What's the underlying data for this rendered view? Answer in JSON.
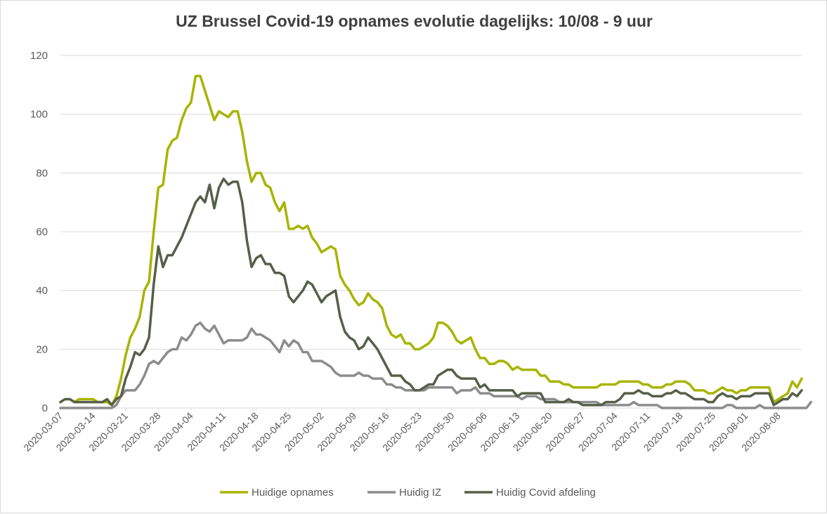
{
  "chart_data": {
    "type": "line",
    "title": "UZ Brussel Covid-19 opnames evolutie dagelijks: 10/08 - 9 uur",
    "xlabel": "",
    "ylabel": "",
    "start_date": "2020-03-07",
    "ylim": [
      0,
      120
    ],
    "yticks": [
      "0",
      "20",
      "40",
      "60",
      "80",
      "100",
      "120"
    ],
    "x_tick_labels": [
      "2020-03-07",
      "2020-03-14",
      "2020-03-21",
      "2020-03-28",
      "2020-04-04",
      "2020-04-11",
      "2020-04-18",
      "2020-04-25",
      "2020-05-02",
      "2020-05-09",
      "2020-05-16",
      "2020-05-23",
      "2020-05-30",
      "2020-06-06",
      "2020-06-13",
      "2020-06-20",
      "2020-06-27",
      "2020-07-04",
      "2020-07-11",
      "2020-07-18",
      "2020-07-25",
      "2020-08-01",
      "2020-08-08"
    ],
    "grid": true,
    "legend_position": "bottom",
    "series": [
      {
        "name": "Huidige opnames",
        "color": "#a8b400",
        "values": [
          2,
          3,
          3,
          2,
          3,
          3,
          3,
          3,
          2,
          2,
          2,
          1,
          4,
          10,
          18,
          24,
          27,
          31,
          40,
          43,
          60,
          75,
          76,
          88,
          91,
          92,
          98,
          102,
          104,
          113,
          113,
          108,
          103,
          98,
          101,
          100,
          99,
          101,
          101,
          94,
          84,
          77,
          80,
          80,
          76,
          75,
          70,
          67,
          70,
          61,
          61,
          62,
          61,
          62,
          58,
          56,
          53,
          54,
          55,
          54,
          45,
          42,
          40,
          37,
          35,
          36,
          39,
          37,
          36,
          34,
          28,
          25,
          24,
          25,
          22,
          22,
          20,
          20,
          21,
          22,
          24,
          29,
          29,
          28,
          26,
          23,
          22,
          23,
          24,
          20,
          17,
          17,
          15,
          15,
          16,
          16,
          15,
          13,
          14,
          13,
          13,
          13,
          13,
          11,
          11,
          9,
          9,
          9,
          8,
          8,
          7,
          7,
          7,
          7,
          7,
          7,
          8,
          8,
          8,
          8,
          9,
          9,
          9,
          9,
          9,
          8,
          8,
          7,
          7,
          7,
          8,
          8,
          9,
          9,
          9,
          8,
          6,
          6,
          6,
          5,
          5,
          6,
          7,
          6,
          6,
          5,
          6,
          6,
          7,
          7,
          7,
          7,
          7,
          2,
          3,
          4,
          5,
          9,
          7,
          10
        ]
      },
      {
        "name": "Huidig IZ",
        "color": "#8c8c8c",
        "values": [
          0,
          0,
          0,
          0,
          0,
          0,
          0,
          0,
          0,
          0,
          0,
          0,
          1,
          4,
          6,
          6,
          6,
          8,
          11,
          15,
          16,
          15,
          17,
          19,
          20,
          20,
          24,
          23,
          25,
          28,
          29,
          27,
          26,
          28,
          25,
          22,
          23,
          23,
          23,
          23,
          24,
          27,
          25,
          25,
          24,
          23,
          21,
          19,
          23,
          21,
          23,
          22,
          19,
          19,
          16,
          16,
          16,
          15,
          14,
          12,
          11,
          11,
          11,
          11,
          12,
          11,
          11,
          10,
          10,
          10,
          8,
          8,
          7,
          7,
          6,
          6,
          6,
          6,
          6,
          7,
          7,
          7,
          7,
          7,
          7,
          5,
          6,
          6,
          6,
          7,
          5,
          5,
          5,
          4,
          4,
          4,
          4,
          4,
          4,
          3,
          4,
          4,
          4,
          3,
          3,
          3,
          3,
          2,
          2,
          2,
          2,
          2,
          2,
          2,
          2,
          2,
          1,
          1,
          1,
          1,
          1,
          1,
          1,
          2,
          1,
          1,
          1,
          1,
          1,
          0,
          0,
          0,
          0,
          0,
          0,
          0,
          0,
          0,
          0,
          0,
          0,
          0,
          0,
          1,
          1,
          0,
          0,
          0,
          0,
          0,
          1,
          0,
          0,
          0,
          0,
          0,
          0,
          0,
          0,
          0,
          0,
          2
        ]
      },
      {
        "name": "Huidig Covid afdeling",
        "color": "#565f48",
        "values": [
          2,
          3,
          3,
          2,
          2,
          2,
          2,
          2,
          2,
          2,
          3,
          1,
          3,
          4,
          10,
          14,
          19,
          18,
          20,
          24,
          42,
          55,
          48,
          52,
          52,
          55,
          58,
          62,
          66,
          70,
          72,
          70,
          76,
          68,
          75,
          78,
          76,
          77,
          77,
          70,
          57,
          48,
          51,
          52,
          49,
          49,
          46,
          46,
          45,
          38,
          36,
          38,
          40,
          43,
          42,
          39,
          36,
          38,
          39,
          40,
          31,
          26,
          24,
          23,
          20,
          21,
          24,
          22,
          20,
          17,
          14,
          11,
          11,
          11,
          9,
          8,
          6,
          6,
          7,
          8,
          8,
          11,
          12,
          13,
          13,
          11,
          10,
          10,
          10,
          10,
          7,
          8,
          6,
          6,
          6,
          6,
          6,
          6,
          4,
          5,
          5,
          5,
          5,
          5,
          2,
          2,
          2,
          2,
          2,
          3,
          2,
          2,
          1,
          1,
          1,
          1,
          1,
          2,
          2,
          2,
          3,
          5,
          5,
          5,
          6,
          5,
          5,
          4,
          4,
          4,
          5,
          5,
          6,
          5,
          5,
          4,
          3,
          3,
          3,
          2,
          2,
          4,
          5,
          4,
          4,
          3,
          4,
          4,
          4,
          5,
          5,
          5,
          5,
          1,
          2,
          3,
          3,
          5,
          4,
          6
        ]
      }
    ]
  }
}
